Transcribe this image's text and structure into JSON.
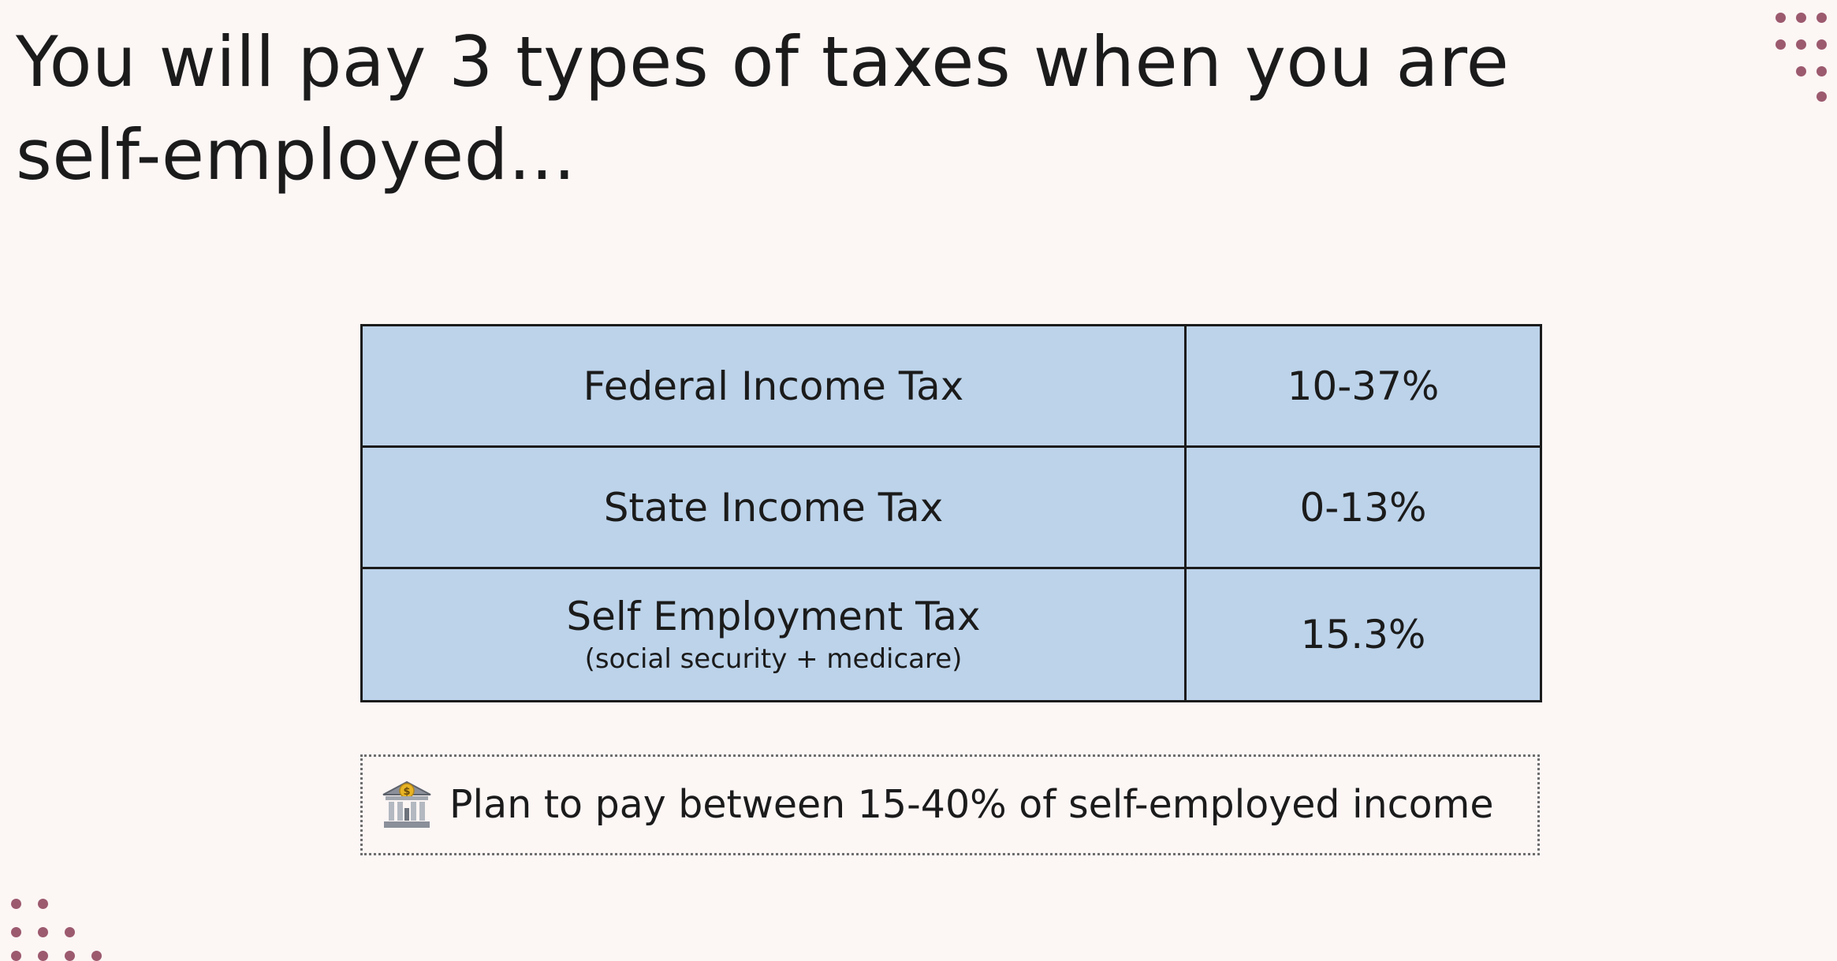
{
  "slide": {
    "title": "You will pay 3 types of taxes when you are self-employed..."
  },
  "taxes": [
    {
      "name": "Federal Income Tax",
      "rate": "10-37%"
    },
    {
      "name": "State Income Tax",
      "rate": "0-13%"
    },
    {
      "name": "Self Employment Tax",
      "sub": "(social security + medicare)",
      "rate": "15.3%"
    }
  ],
  "note": {
    "icon": "bank-icon",
    "text": "Plan to pay between 15-40% of self-employed income"
  },
  "colors": {
    "background": "#fcf6f5",
    "table_fill": "#bcd3ea",
    "text": "#1b1b1b",
    "accent_dots": "#9c5a6e"
  }
}
